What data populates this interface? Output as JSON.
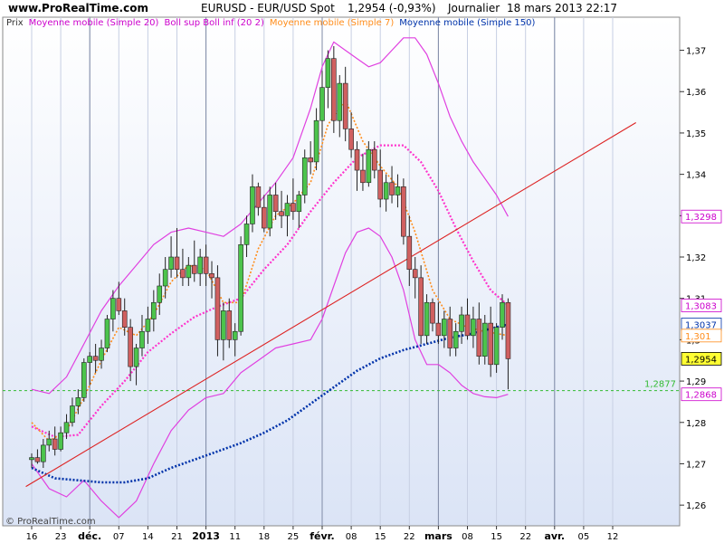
{
  "header": {
    "site": "www.ProRealTime.com",
    "title": "EURUSD - EUR/USD Spot",
    "quote": "1,2954 (-0,93%)",
    "period": "Journalier",
    "datetime": "18 mars 2013 22:17"
  },
  "legend": [
    {
      "label": "Prix",
      "color": "#333333"
    },
    {
      "label": "Moyenne mobile (Simple 20)",
      "color": "#cc00cc"
    },
    {
      "label": "Boll sup Boll inf (20 2)",
      "color": "#cc00cc"
    },
    {
      "label": "Moyenne mobile (Simple 7)",
      "color": "#ff8c1a"
    },
    {
      "label": "Moyenne mobile (Simple 150)",
      "color": "#0033aa"
    }
  ],
  "watermark": "© ProRealTime.com",
  "colors": {
    "up": "#4cc44c",
    "down": "#d06060",
    "bollinger": "#e040e0",
    "ma20": "#ff33cc",
    "ma7": "#ff8c1a",
    "ma150": "#0033aa",
    "trend": "#dd2222",
    "level": "#33bb33",
    "background_top": "#ffffff",
    "background_bottom": "#dde6f7"
  },
  "chart_data": {
    "type": "candlestick",
    "y_ticks": [
      "1,26",
      "1,27",
      "1,28",
      "1,29",
      "1,3",
      "1,31",
      "1,32",
      "1,33",
      "1,34",
      "1,35",
      "1,36",
      "1,37"
    ],
    "ylim": [
      1.255,
      1.378
    ],
    "x_ticks": [
      {
        "label": "16",
        "bar": 0
      },
      {
        "label": "23",
        "bar": 5
      },
      {
        "label": "déc.",
        "bar": 10,
        "bold": true
      },
      {
        "label": "07",
        "bar": 15
      },
      {
        "label": "14",
        "bar": 20
      },
      {
        "label": "21",
        "bar": 25
      },
      {
        "label": "2013",
        "bar": 30,
        "bold": true
      },
      {
        "label": "11",
        "bar": 35
      },
      {
        "label": "18",
        "bar": 40
      },
      {
        "label": "25",
        "bar": 45
      },
      {
        "label": "févr.",
        "bar": 50,
        "bold": true
      },
      {
        "label": "08",
        "bar": 55
      },
      {
        "label": "15",
        "bar": 60
      },
      {
        "label": "22",
        "bar": 65
      },
      {
        "label": "mars",
        "bar": 70,
        "bold": true
      },
      {
        "label": "08",
        "bar": 75
      },
      {
        "label": "15",
        "bar": 80
      },
      {
        "label": "22",
        "bar": 85
      },
      {
        "label": "avr.",
        "bar": 90,
        "bold": true
      },
      {
        "label": "05",
        "bar": 95
      },
      {
        "label": "12",
        "bar": 100
      }
    ],
    "month_bars": [
      10,
      30,
      50,
      70,
      90
    ],
    "price_tags": [
      {
        "label": "1,3298",
        "value": 1.3298,
        "color": "#cc00cc"
      },
      {
        "label": "1,3083",
        "value": 1.3083,
        "color": "#cc00cc"
      },
      {
        "label": "1,3037",
        "value": 1.3037,
        "color": "#0033aa"
      },
      {
        "label": "1,301",
        "value": 1.301,
        "color": "#ff8c1a"
      },
      {
        "label": "1,2954",
        "value": 1.2954,
        "color": "#000000",
        "highlight": true
      },
      {
        "label": "1,2868",
        "value": 1.2868,
        "color": "#cc00cc"
      }
    ],
    "level_line": {
      "label": "1,2877",
      "value": 1.2877
    },
    "trendline": {
      "bar1": -1,
      "value1": 1.2645,
      "bar2": 104,
      "value2": 1.3525
    },
    "candles": [
      [
        1.271,
        1.2725,
        1.269,
        1.2715
      ],
      [
        1.2715,
        1.2735,
        1.27,
        1.2705
      ],
      [
        1.2705,
        1.276,
        1.269,
        1.2745
      ],
      [
        1.2745,
        1.278,
        1.273,
        1.276
      ],
      [
        1.276,
        1.279,
        1.272,
        1.2735
      ],
      [
        1.2735,
        1.279,
        1.273,
        1.2775
      ],
      [
        1.2775,
        1.282,
        1.276,
        1.28
      ],
      [
        1.28,
        1.286,
        1.279,
        1.284
      ],
      [
        1.284,
        1.288,
        1.282,
        1.286
      ],
      [
        1.286,
        1.2955,
        1.285,
        1.2945
      ],
      [
        1.2945,
        1.297,
        1.289,
        1.296
      ],
      [
        1.296,
        1.299,
        1.292,
        1.295
      ],
      [
        1.295,
        1.3,
        1.293,
        1.298
      ],
      [
        1.298,
        1.306,
        1.297,
        1.305
      ],
      [
        1.305,
        1.312,
        1.302,
        1.31
      ],
      [
        1.31,
        1.314,
        1.306,
        1.307
      ],
      [
        1.307,
        1.31,
        1.301,
        1.303
      ],
      [
        1.303,
        1.305,
        1.29,
        1.2935
      ],
      [
        1.2935,
        1.299,
        1.289,
        1.298
      ],
      [
        1.298,
        1.306,
        1.296,
        1.302
      ],
      [
        1.302,
        1.308,
        1.299,
        1.305
      ],
      [
        1.305,
        1.312,
        1.302,
        1.309
      ],
      [
        1.309,
        1.316,
        1.306,
        1.313
      ],
      [
        1.313,
        1.32,
        1.31,
        1.317
      ],
      [
        1.317,
        1.325,
        1.315,
        1.32
      ],
      [
        1.32,
        1.327,
        1.315,
        1.317
      ],
      [
        1.317,
        1.322,
        1.313,
        1.315
      ],
      [
        1.315,
        1.32,
        1.313,
        1.318
      ],
      [
        1.318,
        1.324,
        1.314,
        1.316
      ],
      [
        1.316,
        1.322,
        1.313,
        1.32
      ],
      [
        1.32,
        1.323,
        1.313,
        1.316
      ],
      [
        1.316,
        1.319,
        1.31,
        1.315
      ],
      [
        1.315,
        1.318,
        1.296,
        1.3
      ],
      [
        1.3,
        1.309,
        1.295,
        1.307
      ],
      [
        1.307,
        1.31,
        1.298,
        1.3
      ],
      [
        1.3,
        1.304,
        1.296,
        1.302
      ],
      [
        1.302,
        1.325,
        1.301,
        1.323
      ],
      [
        1.323,
        1.33,
        1.32,
        1.328
      ],
      [
        1.328,
        1.34,
        1.326,
        1.337
      ],
      [
        1.337,
        1.338,
        1.33,
        1.332
      ],
      [
        1.332,
        1.335,
        1.326,
        1.327
      ],
      [
        1.327,
        1.337,
        1.325,
        1.335
      ],
      [
        1.335,
        1.338,
        1.329,
        1.331
      ],
      [
        1.331,
        1.336,
        1.327,
        1.33
      ],
      [
        1.33,
        1.335,
        1.325,
        1.333
      ],
      [
        1.333,
        1.339,
        1.329,
        1.331
      ],
      [
        1.331,
        1.336,
        1.327,
        1.335
      ],
      [
        1.335,
        1.346,
        1.333,
        1.344
      ],
      [
        1.344,
        1.348,
        1.34,
        1.343
      ],
      [
        1.343,
        1.356,
        1.341,
        1.353
      ],
      [
        1.353,
        1.365,
        1.349,
        1.361
      ],
      [
        1.361,
        1.37,
        1.356,
        1.368
      ],
      [
        1.368,
        1.371,
        1.35,
        1.353
      ],
      [
        1.353,
        1.364,
        1.349,
        1.362
      ],
      [
        1.362,
        1.366,
        1.348,
        1.351
      ],
      [
        1.351,
        1.355,
        1.344,
        1.346
      ],
      [
        1.346,
        1.348,
        1.336,
        1.341
      ],
      [
        1.341,
        1.345,
        1.336,
        1.338
      ],
      [
        1.338,
        1.348,
        1.337,
        1.346
      ],
      [
        1.346,
        1.348,
        1.339,
        1.341
      ],
      [
        1.341,
        1.346,
        1.332,
        1.334
      ],
      [
        1.334,
        1.34,
        1.331,
        1.338
      ],
      [
        1.338,
        1.342,
        1.333,
        1.335
      ],
      [
        1.335,
        1.34,
        1.332,
        1.337
      ],
      [
        1.337,
        1.339,
        1.323,
        1.325
      ],
      [
        1.325,
        1.33,
        1.313,
        1.317
      ],
      [
        1.317,
        1.32,
        1.31,
        1.315
      ],
      [
        1.315,
        1.318,
        1.299,
        1.301
      ],
      [
        1.301,
        1.311,
        1.299,
        1.309
      ],
      [
        1.309,
        1.31,
        1.302,
        1.304
      ],
      [
        1.304,
        1.309,
        1.299,
        1.301
      ],
      [
        1.301,
        1.307,
        1.298,
        1.305
      ],
      [
        1.305,
        1.308,
        1.296,
        1.298
      ],
      [
        1.298,
        1.304,
        1.296,
        1.302
      ],
      [
        1.302,
        1.308,
        1.299,
        1.306
      ],
      [
        1.306,
        1.31,
        1.3,
        1.301
      ],
      [
        1.301,
        1.308,
        1.298,
        1.305
      ],
      [
        1.305,
        1.309,
        1.294,
        1.296
      ],
      [
        1.296,
        1.306,
        1.294,
        1.304
      ],
      [
        1.304,
        1.308,
        1.291,
        1.294
      ],
      [
        1.294,
        1.304,
        1.292,
        1.303
      ],
      [
        1.303,
        1.311,
        1.3,
        1.309
      ],
      [
        1.309,
        1.31,
        1.288,
        1.2954
      ]
    ],
    "series": {
      "bollinger_upper": [
        [
          0,
          1.288
        ],
        [
          3,
          1.287
        ],
        [
          6,
          1.291
        ],
        [
          9,
          1.299
        ],
        [
          12,
          1.307
        ],
        [
          15,
          1.313
        ],
        [
          18,
          1.318
        ],
        [
          21,
          1.323
        ],
        [
          24,
          1.326
        ],
        [
          27,
          1.327
        ],
        [
          30,
          1.326
        ],
        [
          33,
          1.325
        ],
        [
          36,
          1.328
        ],
        [
          39,
          1.333
        ],
        [
          42,
          1.338
        ],
        [
          45,
          1.344
        ],
        [
          48,
          1.356
        ],
        [
          50,
          1.366
        ],
        [
          52,
          1.372
        ],
        [
          54,
          1.37
        ],
        [
          56,
          1.368
        ],
        [
          58,
          1.366
        ],
        [
          60,
          1.367
        ],
        [
          62,
          1.37
        ],
        [
          64,
          1.373
        ],
        [
          66,
          1.373
        ],
        [
          68,
          1.369
        ],
        [
          70,
          1.362
        ],
        [
          72,
          1.354
        ],
        [
          74,
          1.348
        ],
        [
          76,
          1.343
        ],
        [
          78,
          1.339
        ],
        [
          80,
          1.335
        ],
        [
          82,
          1.3298
        ]
      ],
      "bollinger_lower": [
        [
          0,
          1.27
        ],
        [
          3,
          1.264
        ],
        [
          6,
          1.262
        ],
        [
          9,
          1.266
        ],
        [
          12,
          1.261
        ],
        [
          15,
          1.257
        ],
        [
          18,
          1.261
        ],
        [
          21,
          1.27
        ],
        [
          24,
          1.278
        ],
        [
          27,
          1.283
        ],
        [
          30,
          1.286
        ],
        [
          33,
          1.287
        ],
        [
          36,
          1.292
        ],
        [
          39,
          1.295
        ],
        [
          42,
          1.298
        ],
        [
          45,
          1.299
        ],
        [
          48,
          1.3
        ],
        [
          50,
          1.305
        ],
        [
          52,
          1.313
        ],
        [
          54,
          1.321
        ],
        [
          56,
          1.326
        ],
        [
          58,
          1.327
        ],
        [
          60,
          1.325
        ],
        [
          62,
          1.32
        ],
        [
          64,
          1.312
        ],
        [
          66,
          1.3
        ],
        [
          68,
          1.294
        ],
        [
          70,
          1.294
        ],
        [
          72,
          1.292
        ],
        [
          74,
          1.289
        ],
        [
          76,
          1.287
        ],
        [
          78,
          1.2862
        ],
        [
          80,
          1.286
        ],
        [
          82,
          1.2868
        ]
      ],
      "ma20": [
        [
          0,
          1.279
        ],
        [
          4,
          1.2765
        ],
        [
          8,
          1.277
        ],
        [
          12,
          1.284
        ],
        [
          16,
          1.29
        ],
        [
          20,
          1.297
        ],
        [
          24,
          1.3015
        ],
        [
          28,
          1.3055
        ],
        [
          32,
          1.308
        ],
        [
          36,
          1.31
        ],
        [
          40,
          1.317
        ],
        [
          44,
          1.323
        ],
        [
          48,
          1.331
        ],
        [
          52,
          1.338
        ],
        [
          56,
          1.344
        ],
        [
          60,
          1.347
        ],
        [
          64,
          1.347
        ],
        [
          67,
          1.343
        ],
        [
          70,
          1.336
        ],
        [
          73,
          1.327
        ],
        [
          76,
          1.319
        ],
        [
          79,
          1.312
        ],
        [
          82,
          1.3083
        ]
      ],
      "ma7": [
        [
          0,
          1.28
        ],
        [
          3,
          1.2755
        ],
        [
          6,
          1.278
        ],
        [
          9,
          1.286
        ],
        [
          12,
          1.295
        ],
        [
          15,
          1.303
        ],
        [
          18,
          1.301
        ],
        [
          21,
          1.306
        ],
        [
          24,
          1.314
        ],
        [
          27,
          1.318
        ],
        [
          30,
          1.317
        ],
        [
          33,
          1.309
        ],
        [
          36,
          1.309
        ],
        [
          39,
          1.322
        ],
        [
          42,
          1.33
        ],
        [
          45,
          1.333
        ],
        [
          48,
          1.338
        ],
        [
          51,
          1.352
        ],
        [
          54,
          1.358
        ],
        [
          57,
          1.348
        ],
        [
          60,
          1.342
        ],
        [
          63,
          1.337
        ],
        [
          66,
          1.326
        ],
        [
          69,
          1.312
        ],
        [
          72,
          1.305
        ],
        [
          75,
          1.303
        ],
        [
          78,
          1.302
        ],
        [
          82,
          1.301
        ]
      ],
      "ma150": [
        [
          0,
          1.269
        ],
        [
          4,
          1.2665
        ],
        [
          8,
          1.266
        ],
        [
          12,
          1.2655
        ],
        [
          16,
          1.2655
        ],
        [
          20,
          1.2665
        ],
        [
          24,
          1.269
        ],
        [
          28,
          1.271
        ],
        [
          32,
          1.273
        ],
        [
          36,
          1.275
        ],
        [
          40,
          1.2775
        ],
        [
          44,
          1.2805
        ],
        [
          48,
          1.2845
        ],
        [
          52,
          1.2885
        ],
        [
          56,
          1.2925
        ],
        [
          60,
          1.2955
        ],
        [
          64,
          1.2975
        ],
        [
          68,
          1.299
        ],
        [
          72,
          1.3005
        ],
        [
          76,
          1.3015
        ],
        [
          79,
          1.3027
        ],
        [
          82,
          1.3037
        ]
      ]
    }
  }
}
